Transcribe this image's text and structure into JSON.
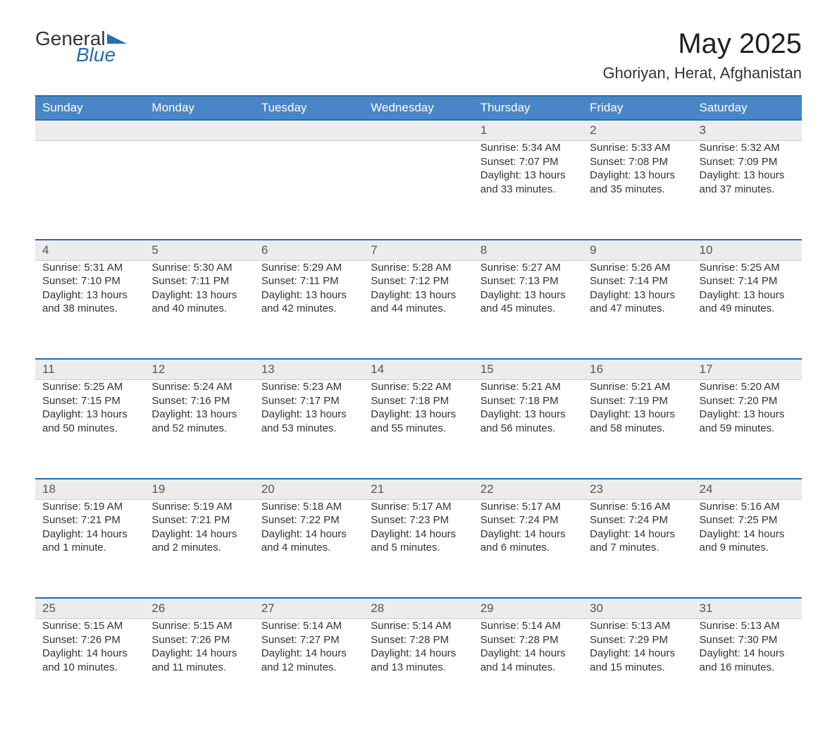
{
  "brand": {
    "general": "General",
    "blue": "Blue"
  },
  "title": "May 2025",
  "location": "Ghoriyan, Herat, Afghanistan",
  "colors": {
    "header_bg": "#4a86c5",
    "header_border": "#1f6fb2",
    "daynum_bg": "#ececec",
    "text": "#333333",
    "brand_blue": "#1f6fb2"
  },
  "day_headers": [
    "Sunday",
    "Monday",
    "Tuesday",
    "Wednesday",
    "Thursday",
    "Friday",
    "Saturday"
  ],
  "weeks": [
    [
      null,
      null,
      null,
      null,
      {
        "n": "1",
        "sunrise": "Sunrise: 5:34 AM",
        "sunset": "Sunset: 7:07 PM",
        "daylight": "Daylight: 13 hours and 33 minutes."
      },
      {
        "n": "2",
        "sunrise": "Sunrise: 5:33 AM",
        "sunset": "Sunset: 7:08 PM",
        "daylight": "Daylight: 13 hours and 35 minutes."
      },
      {
        "n": "3",
        "sunrise": "Sunrise: 5:32 AM",
        "sunset": "Sunset: 7:09 PM",
        "daylight": "Daylight: 13 hours and 37 minutes."
      }
    ],
    [
      {
        "n": "4",
        "sunrise": "Sunrise: 5:31 AM",
        "sunset": "Sunset: 7:10 PM",
        "daylight": "Daylight: 13 hours and 38 minutes."
      },
      {
        "n": "5",
        "sunrise": "Sunrise: 5:30 AM",
        "sunset": "Sunset: 7:11 PM",
        "daylight": "Daylight: 13 hours and 40 minutes."
      },
      {
        "n": "6",
        "sunrise": "Sunrise: 5:29 AM",
        "sunset": "Sunset: 7:11 PM",
        "daylight": "Daylight: 13 hours and 42 minutes."
      },
      {
        "n": "7",
        "sunrise": "Sunrise: 5:28 AM",
        "sunset": "Sunset: 7:12 PM",
        "daylight": "Daylight: 13 hours and 44 minutes."
      },
      {
        "n": "8",
        "sunrise": "Sunrise: 5:27 AM",
        "sunset": "Sunset: 7:13 PM",
        "daylight": "Daylight: 13 hours and 45 minutes."
      },
      {
        "n": "9",
        "sunrise": "Sunrise: 5:26 AM",
        "sunset": "Sunset: 7:14 PM",
        "daylight": "Daylight: 13 hours and 47 minutes."
      },
      {
        "n": "10",
        "sunrise": "Sunrise: 5:25 AM",
        "sunset": "Sunset: 7:14 PM",
        "daylight": "Daylight: 13 hours and 49 minutes."
      }
    ],
    [
      {
        "n": "11",
        "sunrise": "Sunrise: 5:25 AM",
        "sunset": "Sunset: 7:15 PM",
        "daylight": "Daylight: 13 hours and 50 minutes."
      },
      {
        "n": "12",
        "sunrise": "Sunrise: 5:24 AM",
        "sunset": "Sunset: 7:16 PM",
        "daylight": "Daylight: 13 hours and 52 minutes."
      },
      {
        "n": "13",
        "sunrise": "Sunrise: 5:23 AM",
        "sunset": "Sunset: 7:17 PM",
        "daylight": "Daylight: 13 hours and 53 minutes."
      },
      {
        "n": "14",
        "sunrise": "Sunrise: 5:22 AM",
        "sunset": "Sunset: 7:18 PM",
        "daylight": "Daylight: 13 hours and 55 minutes."
      },
      {
        "n": "15",
        "sunrise": "Sunrise: 5:21 AM",
        "sunset": "Sunset: 7:18 PM",
        "daylight": "Daylight: 13 hours and 56 minutes."
      },
      {
        "n": "16",
        "sunrise": "Sunrise: 5:21 AM",
        "sunset": "Sunset: 7:19 PM",
        "daylight": "Daylight: 13 hours and 58 minutes."
      },
      {
        "n": "17",
        "sunrise": "Sunrise: 5:20 AM",
        "sunset": "Sunset: 7:20 PM",
        "daylight": "Daylight: 13 hours and 59 minutes."
      }
    ],
    [
      {
        "n": "18",
        "sunrise": "Sunrise: 5:19 AM",
        "sunset": "Sunset: 7:21 PM",
        "daylight": "Daylight: 14 hours and 1 minute."
      },
      {
        "n": "19",
        "sunrise": "Sunrise: 5:19 AM",
        "sunset": "Sunset: 7:21 PM",
        "daylight": "Daylight: 14 hours and 2 minutes."
      },
      {
        "n": "20",
        "sunrise": "Sunrise: 5:18 AM",
        "sunset": "Sunset: 7:22 PM",
        "daylight": "Daylight: 14 hours and 4 minutes."
      },
      {
        "n": "21",
        "sunrise": "Sunrise: 5:17 AM",
        "sunset": "Sunset: 7:23 PM",
        "daylight": "Daylight: 14 hours and 5 minutes."
      },
      {
        "n": "22",
        "sunrise": "Sunrise: 5:17 AM",
        "sunset": "Sunset: 7:24 PM",
        "daylight": "Daylight: 14 hours and 6 minutes."
      },
      {
        "n": "23",
        "sunrise": "Sunrise: 5:16 AM",
        "sunset": "Sunset: 7:24 PM",
        "daylight": "Daylight: 14 hours and 7 minutes."
      },
      {
        "n": "24",
        "sunrise": "Sunrise: 5:16 AM",
        "sunset": "Sunset: 7:25 PM",
        "daylight": "Daylight: 14 hours and 9 minutes."
      }
    ],
    [
      {
        "n": "25",
        "sunrise": "Sunrise: 5:15 AM",
        "sunset": "Sunset: 7:26 PM",
        "daylight": "Daylight: 14 hours and 10 minutes."
      },
      {
        "n": "26",
        "sunrise": "Sunrise: 5:15 AM",
        "sunset": "Sunset: 7:26 PM",
        "daylight": "Daylight: 14 hours and 11 minutes."
      },
      {
        "n": "27",
        "sunrise": "Sunrise: 5:14 AM",
        "sunset": "Sunset: 7:27 PM",
        "daylight": "Daylight: 14 hours and 12 minutes."
      },
      {
        "n": "28",
        "sunrise": "Sunrise: 5:14 AM",
        "sunset": "Sunset: 7:28 PM",
        "daylight": "Daylight: 14 hours and 13 minutes."
      },
      {
        "n": "29",
        "sunrise": "Sunrise: 5:14 AM",
        "sunset": "Sunset: 7:28 PM",
        "daylight": "Daylight: 14 hours and 14 minutes."
      },
      {
        "n": "30",
        "sunrise": "Sunrise: 5:13 AM",
        "sunset": "Sunset: 7:29 PM",
        "daylight": "Daylight: 14 hours and 15 minutes."
      },
      {
        "n": "31",
        "sunrise": "Sunrise: 5:13 AM",
        "sunset": "Sunset: 7:30 PM",
        "daylight": "Daylight: 14 hours and 16 minutes."
      }
    ]
  ]
}
